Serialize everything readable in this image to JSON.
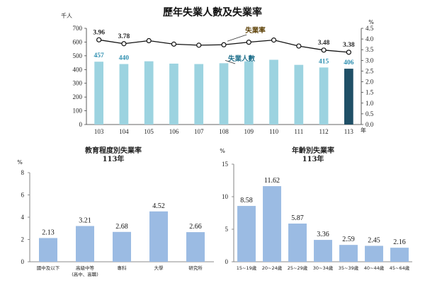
{
  "chart_data": [
    {
      "type": "bar+line",
      "title": "歷年失業人數及失業率",
      "left_axis_unit": "千人",
      "right_axis_unit": "%",
      "x_suffix": "年",
      "categories": [
        "103",
        "104",
        "105",
        "106",
        "107",
        "108",
        "109",
        "110",
        "111",
        "112",
        "113"
      ],
      "left_ticks": [
        "0",
        "100",
        "200",
        "300",
        "400",
        "500",
        "600",
        "700"
      ],
      "right_ticks": [
        "0.0",
        "0.5",
        "1.0",
        "1.5",
        "2.0",
        "2.5",
        "3.0",
        "3.5",
        "4.0",
        "4.5"
      ],
      "ylim_left": [
        0,
        700
      ],
      "ylim_right": [
        0,
        4.5
      ],
      "series": [
        {
          "name": "失業人數",
          "type": "bar",
          "axis": "left",
          "values": [
            457,
            440,
            460,
            443,
            440,
            446,
            460,
            471,
            434,
            415,
            406
          ],
          "labels": [
            "457",
            "440",
            "",
            "",
            "",
            "",
            "",
            "",
            "",
            "415",
            "406"
          ],
          "color": "#9cd3e0",
          "highlight_color": "#1f4f66",
          "label_color": "#2e8fb0"
        },
        {
          "name": "失業率",
          "type": "line",
          "axis": "right",
          "values": [
            3.96,
            3.78,
            3.92,
            3.76,
            3.71,
            3.73,
            3.85,
            3.95,
            3.67,
            3.48,
            3.38
          ],
          "labels": [
            "3.96",
            "3.78",
            "",
            "",
            "",
            "",
            "",
            "",
            "",
            "3.48",
            "3.38"
          ],
          "color": "#111111",
          "label_color": "#222222"
        }
      ]
    },
    {
      "type": "bar",
      "title": "教育程度別失業率",
      "subtitle": "113年",
      "unit": "%",
      "categories": [
        "國中及以下",
        "高級中等\n(高中、高職)",
        "專科",
        "大學",
        "研究所"
      ],
      "values": [
        2.13,
        3.21,
        2.68,
        4.52,
        2.66
      ],
      "labels": [
        "2.13",
        "3.21",
        "2.68",
        "4.52",
        "2.66"
      ],
      "ticks": [
        "0",
        "2",
        "4",
        "6",
        "8"
      ],
      "ylim": [
        0,
        8
      ],
      "color": "#9bbbe3"
    },
    {
      "type": "bar",
      "title": "年齡別失業率",
      "subtitle": "113年",
      "unit": "%",
      "categories": [
        "15~19歲",
        "20~24歲",
        "25~29歲",
        "30~34歲",
        "35~39歲",
        "40~44歲",
        "45~64歲"
      ],
      "values": [
        8.58,
        11.62,
        5.87,
        3.36,
        2.59,
        2.45,
        2.16
      ],
      "labels": [
        "8.58",
        "11.62",
        "5.87",
        "3.36",
        "2.59",
        "2.45",
        "2.16"
      ],
      "ticks": [
        "0",
        "5",
        "10",
        "15"
      ],
      "ylim": [
        0,
        15
      ],
      "color": "#9bbbe3"
    }
  ]
}
